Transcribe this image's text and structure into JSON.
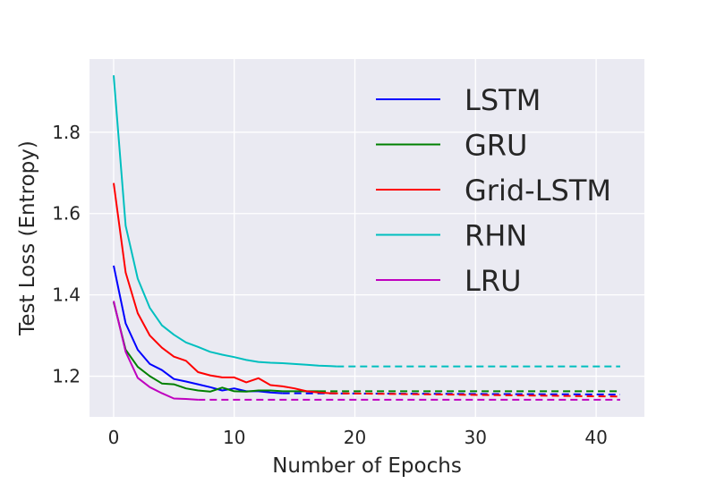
{
  "chart_data": {
    "type": "line",
    "title": "",
    "xlabel": "Number of Epochs",
    "ylabel": "Test Loss (Entropy)",
    "xlim": [
      -2,
      44
    ],
    "ylim": [
      1.1,
      1.98
    ],
    "xticks": [
      0,
      10,
      20,
      30,
      40
    ],
    "xtick_labels": [
      "0",
      "10",
      "20",
      "30",
      "40"
    ],
    "yticks": [
      1.2,
      1.4,
      1.6,
      1.8
    ],
    "ytick_labels": [
      "1.2",
      "1.4",
      "1.6",
      "1.8"
    ],
    "grid": true,
    "legend_position": "upper-right",
    "series": [
      {
        "name": "LSTM",
        "color": "#0000ff",
        "x": [
          0,
          1,
          2,
          3,
          4,
          5,
          6,
          7,
          8,
          9,
          10,
          11,
          12,
          13,
          14
        ],
        "values": [
          1.472,
          1.33,
          1.265,
          1.23,
          1.215,
          1.193,
          1.187,
          1.18,
          1.173,
          1.165,
          1.17,
          1.163,
          1.163,
          1.16,
          1.158
        ],
        "extension": {
          "x": [
            14,
            42
          ],
          "values": [
            1.158,
            1.155
          ]
        }
      },
      {
        "name": "GRU",
        "color": "#008000",
        "x": [
          0,
          1,
          2,
          3,
          4,
          5,
          6,
          7,
          8,
          9,
          10,
          11,
          12,
          13,
          14,
          15,
          16,
          17
        ],
        "values": [
          1.382,
          1.265,
          1.223,
          1.2,
          1.182,
          1.18,
          1.17,
          1.165,
          1.162,
          1.172,
          1.163,
          1.162,
          1.165,
          1.165,
          1.163,
          1.163,
          1.163,
          1.163
        ],
        "extension": {
          "x": [
            17,
            42
          ],
          "values": [
            1.163,
            1.163
          ]
        }
      },
      {
        "name": "Grid-LSTM",
        "color": "#ff0000",
        "x": [
          0,
          1,
          2,
          3,
          4,
          5,
          6,
          7,
          8,
          9,
          10,
          11,
          12,
          13,
          14,
          15,
          16,
          17,
          18
        ],
        "values": [
          1.675,
          1.455,
          1.355,
          1.3,
          1.27,
          1.248,
          1.238,
          1.21,
          1.202,
          1.197,
          1.197,
          1.185,
          1.195,
          1.178,
          1.175,
          1.17,
          1.163,
          1.16,
          1.158
        ],
        "extension": {
          "x": [
            18,
            42
          ],
          "values": [
            1.158,
            1.15
          ]
        }
      },
      {
        "name": "RHN",
        "color": "#00bfbf",
        "x": [
          0,
          1,
          2,
          3,
          4,
          5,
          6,
          7,
          8,
          9,
          10,
          11,
          12,
          13,
          14,
          15,
          16,
          17,
          18,
          18.5
        ],
        "values": [
          1.94,
          1.57,
          1.44,
          1.368,
          1.325,
          1.302,
          1.283,
          1.272,
          1.26,
          1.253,
          1.247,
          1.24,
          1.235,
          1.233,
          1.232,
          1.23,
          1.228,
          1.226,
          1.225,
          1.224
        ],
        "extension": {
          "x": [
            18.5,
            42
          ],
          "values": [
            1.224,
            1.224
          ]
        }
      },
      {
        "name": "LRU",
        "color": "#bf00bf",
        "x": [
          0,
          1,
          2,
          3,
          4,
          5,
          6,
          7
        ],
        "values": [
          1.385,
          1.26,
          1.196,
          1.173,
          1.158,
          1.145,
          1.144,
          1.142
        ],
        "extension": {
          "x": [
            7,
            42
          ],
          "values": [
            1.142,
            1.142
          ]
        }
      }
    ]
  }
}
